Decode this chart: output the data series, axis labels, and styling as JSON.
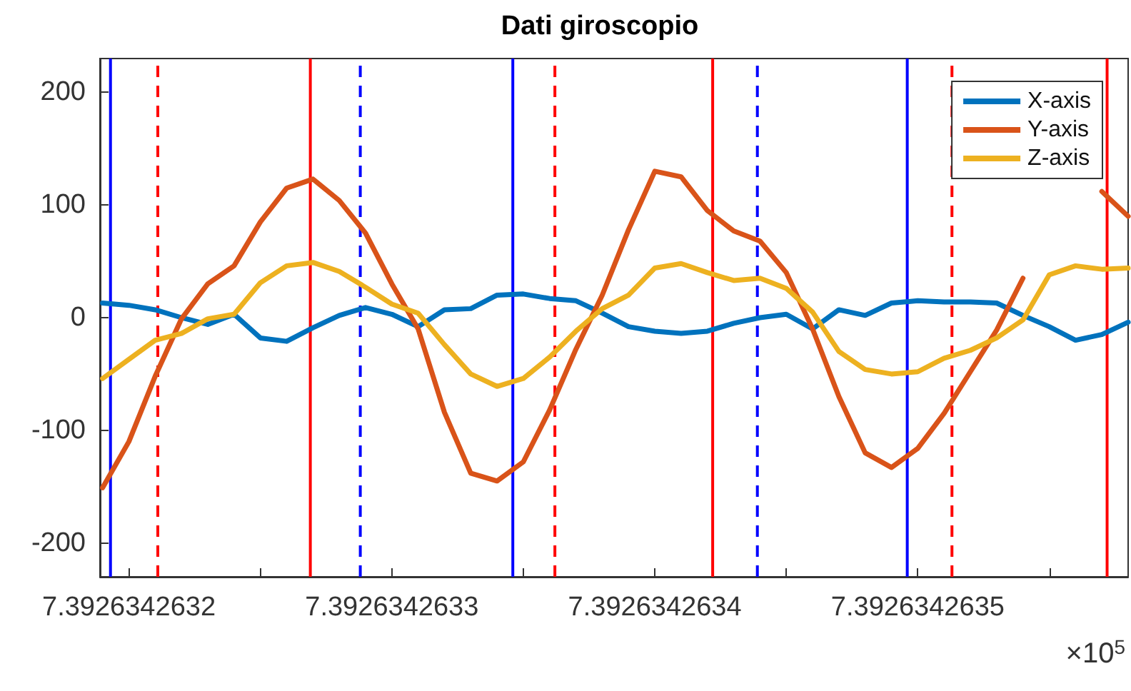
{
  "chart_data": {
    "type": "line",
    "title": "Dati giroscopio",
    "annotations": [
      "×10$^{5}$"
    ],
    "x": [
      7.39263426319,
      7.3926342632,
      7.39263426321,
      7.39263426322,
      7.39263426323,
      7.39263426324,
      7.39263426325,
      7.39263426326,
      7.39263426327,
      7.39263426328,
      7.39263426329,
      7.3926342633,
      7.39263426331,
      7.39263426332,
      7.39263426333,
      7.39263426334,
      7.39263426335,
      7.39263426336,
      7.39263426337,
      7.39263426338,
      7.39263426339,
      7.3926342634,
      7.39263426341,
      7.39263426342,
      7.39263426343,
      7.39263426344,
      7.39263426345,
      7.39263426346,
      7.39263426347,
      7.39263426348,
      7.39263426349,
      7.3926342635,
      7.39263426351,
      7.39263426352,
      7.39263426353,
      7.39263426354,
      7.39263426355,
      7.39263426356,
      7.39263426357,
      7.39263426358
    ],
    "series": [
      {
        "name": "X-axis",
        "color": "#0072bd",
        "values": [
          13,
          11,
          7,
          0,
          -6,
          3,
          -18,
          -21,
          -9,
          2,
          9,
          3,
          -8,
          7,
          8,
          20,
          21,
          17,
          15,
          4,
          -8,
          -12,
          -14,
          -12,
          -5,
          0,
          3,
          -10,
          7,
          2,
          13,
          15,
          14,
          14,
          13,
          2,
          -8,
          -20,
          -15,
          -4
        ]
      },
      {
        "name": "Y-axis",
        "color": "#d95319",
        "values": [
          -151,
          -110,
          -52,
          -1,
          30,
          46,
          85,
          115,
          123,
          104,
          75,
          30,
          -10,
          -84,
          -138,
          -145,
          -128,
          -82,
          -28,
          20,
          78,
          130,
          125,
          95,
          77,
          68,
          40,
          -10,
          -70,
          -120,
          -133,
          -116,
          -85,
          -48,
          -11,
          35,
          null,
          null,
          112,
          90
        ]
      },
      {
        "name": "Z-axis",
        "color": "#edb120",
        "values": [
          -54,
          -37,
          -20,
          -14,
          -1,
          3,
          31,
          46,
          49,
          41,
          27,
          12,
          4,
          -24,
          -50,
          -61,
          -54,
          -35,
          -12,
          8,
          20,
          44,
          48,
          40,
          33,
          35,
          26,
          5,
          -30,
          -46,
          -50,
          -48,
          -36,
          -29,
          -18,
          -2,
          38,
          46,
          43,
          44
        ]
      }
    ],
    "xlim": [
      7.392634263189,
      7.39263426358
    ],
    "xticks": [
      {
        "value": 7.3926342632,
        "label": "7.3926342632"
      },
      {
        "value": 7.39263426325,
        "label": null
      },
      {
        "value": 7.3926342633,
        "label": "7.3926342633"
      },
      {
        "value": 7.39263426335,
        "label": null
      },
      {
        "value": 7.3926342634,
        "label": "7.3926342634"
      },
      {
        "value": 7.39263426345,
        "label": null
      },
      {
        "value": 7.3926342635,
        "label": "7.3926342635"
      },
      {
        "value": 7.39263426355,
        "label": null
      }
    ],
    "ylim": [
      -230,
      230
    ],
    "yticks": [
      -200,
      -100,
      0,
      100,
      200
    ],
    "ref_lines": [
      {
        "axis": "x",
        "value": 7.392634263193,
        "color": "#0000ff",
        "line_style": "solid"
      },
      {
        "axis": "x",
        "value": 7.392634263211,
        "color": "#ff0000",
        "line_style": "dashed"
      },
      {
        "axis": "x",
        "value": 7.392634263269,
        "color": "#ff0000",
        "line_style": "solid"
      },
      {
        "axis": "x",
        "value": 7.392634263288,
        "color": "#0000ff",
        "line_style": "dashed"
      },
      {
        "axis": "x",
        "value": 7.392634263346,
        "color": "#0000ff",
        "line_style": "solid"
      },
      {
        "axis": "x",
        "value": 7.392634263362,
        "color": "#ff0000",
        "line_style": "dashed"
      },
      {
        "axis": "x",
        "value": 7.392634263422,
        "color": "#ff0000",
        "line_style": "solid"
      },
      {
        "axis": "x",
        "value": 7.392634263439,
        "color": "#0000ff",
        "line_style": "dashed"
      },
      {
        "axis": "x",
        "value": 7.392634263496,
        "color": "#0000ff",
        "line_style": "solid"
      },
      {
        "axis": "x",
        "value": 7.392634263513,
        "color": "#ff0000",
        "line_style": "dashed"
      },
      {
        "axis": "x",
        "value": 7.392634263572,
        "color": "#ff0000",
        "line_style": "solid"
      }
    ],
    "legend": "top right",
    "grid": false,
    "marker": "none",
    "line_style": "solid"
  }
}
